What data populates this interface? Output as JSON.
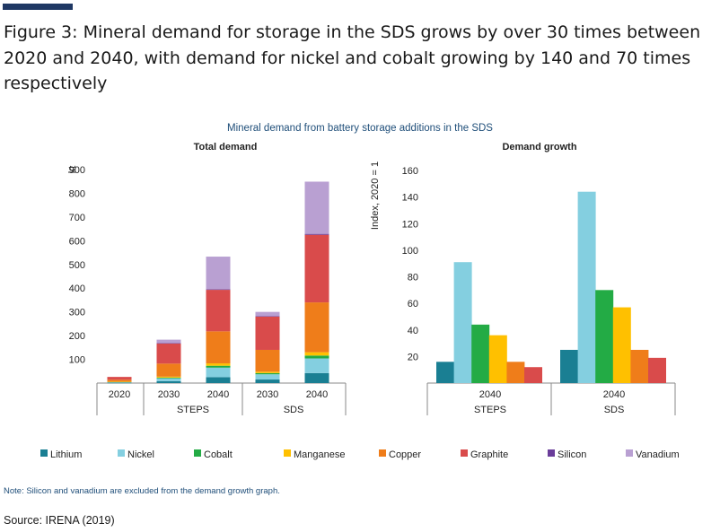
{
  "page": {
    "figure_title": "Figure 3: Mineral demand for storage in the SDS grows by over 30 times between 2020 and 2040, with demand for nickel and cobalt growing by 140 and 70 times respectively",
    "note": "Note: Silicon and vanadium are excluded from the demand growth graph.",
    "source": "Source: IRENA (2019)"
  },
  "chart_data": [
    {
      "type": "bar",
      "stacked": true,
      "suptitle": "Mineral demand from battery storage additions in the SDS",
      "title": "Total demand",
      "ylabel": "kt",
      "ylim": [
        0,
        900
      ],
      "yticks": [
        100,
        200,
        300,
        400,
        500,
        600,
        700,
        800,
        900
      ],
      "categories": [
        "2020",
        "2030",
        "2040",
        "2030",
        "2040"
      ],
      "groups": [
        {
          "label": "",
          "categories": [
            "2020"
          ]
        },
        {
          "label": "STEPS",
          "categories": [
            "2030",
            "2040"
          ]
        },
        {
          "label": "SDS",
          "categories": [
            "2030",
            "2040"
          ]
        }
      ],
      "series": [
        {
          "name": "Lithium",
          "color": "#1a7f93",
          "values": [
            1,
            8,
            25,
            15,
            42
          ]
        },
        {
          "name": "Nickel",
          "color": "#84cfe0",
          "values": [
            3,
            12,
            40,
            22,
            62
          ]
        },
        {
          "name": "Cobalt",
          "color": "#23ab45",
          "values": [
            1,
            3,
            8,
            5,
            12
          ]
        },
        {
          "name": "Manganese",
          "color": "#ffc000",
          "values": [
            1,
            4,
            10,
            6,
            14
          ]
        },
        {
          "name": "Copper",
          "color": "#ef7d1a",
          "values": [
            8,
            55,
            135,
            92,
            210
          ]
        },
        {
          "name": "Graphite",
          "color": "#d94b4b",
          "values": [
            12,
            85,
            175,
            140,
            285
          ]
        },
        {
          "name": "Silicon",
          "color": "#6a3d9a",
          "values": [
            0,
            1,
            2,
            2,
            4
          ]
        },
        {
          "name": "Vanadium",
          "color": "#b9a0d2",
          "values": [
            0,
            15,
            138,
            18,
            220
          ]
        }
      ]
    },
    {
      "type": "bar",
      "title": "Demand growth",
      "ylabel": "Index, 2020 = 1",
      "ylim": [
        0,
        160
      ],
      "yticks": [
        20,
        40,
        60,
        80,
        100,
        120,
        140,
        160
      ],
      "categories": [
        "2040",
        "2040"
      ],
      "groups": [
        "STEPS",
        "SDS"
      ],
      "series": [
        {
          "name": "Lithium",
          "color": "#1a7f93",
          "values": [
            16,
            25
          ]
        },
        {
          "name": "Nickel",
          "color": "#84cfe0",
          "values": [
            91,
            144
          ]
        },
        {
          "name": "Cobalt",
          "color": "#23ab45",
          "values": [
            44,
            70
          ]
        },
        {
          "name": "Manganese",
          "color": "#ffc000",
          "values": [
            36,
            57
          ]
        },
        {
          "name": "Copper",
          "color": "#ef7d1a",
          "values": [
            16,
            25
          ]
        },
        {
          "name": "Graphite",
          "color": "#d94b4b",
          "values": [
            12,
            19
          ]
        }
      ]
    }
  ],
  "legend": [
    {
      "name": "Lithium",
      "color": "#1a7f93"
    },
    {
      "name": "Nickel",
      "color": "#84cfe0"
    },
    {
      "name": "Cobalt",
      "color": "#23ab45"
    },
    {
      "name": "Manganese",
      "color": "#ffc000"
    },
    {
      "name": "Copper",
      "color": "#ef7d1a"
    },
    {
      "name": "Graphite",
      "color": "#d94b4b"
    },
    {
      "name": "Silicon",
      "color": "#6a3d9a"
    },
    {
      "name": "Vanadium",
      "color": "#b9a0d2"
    }
  ]
}
